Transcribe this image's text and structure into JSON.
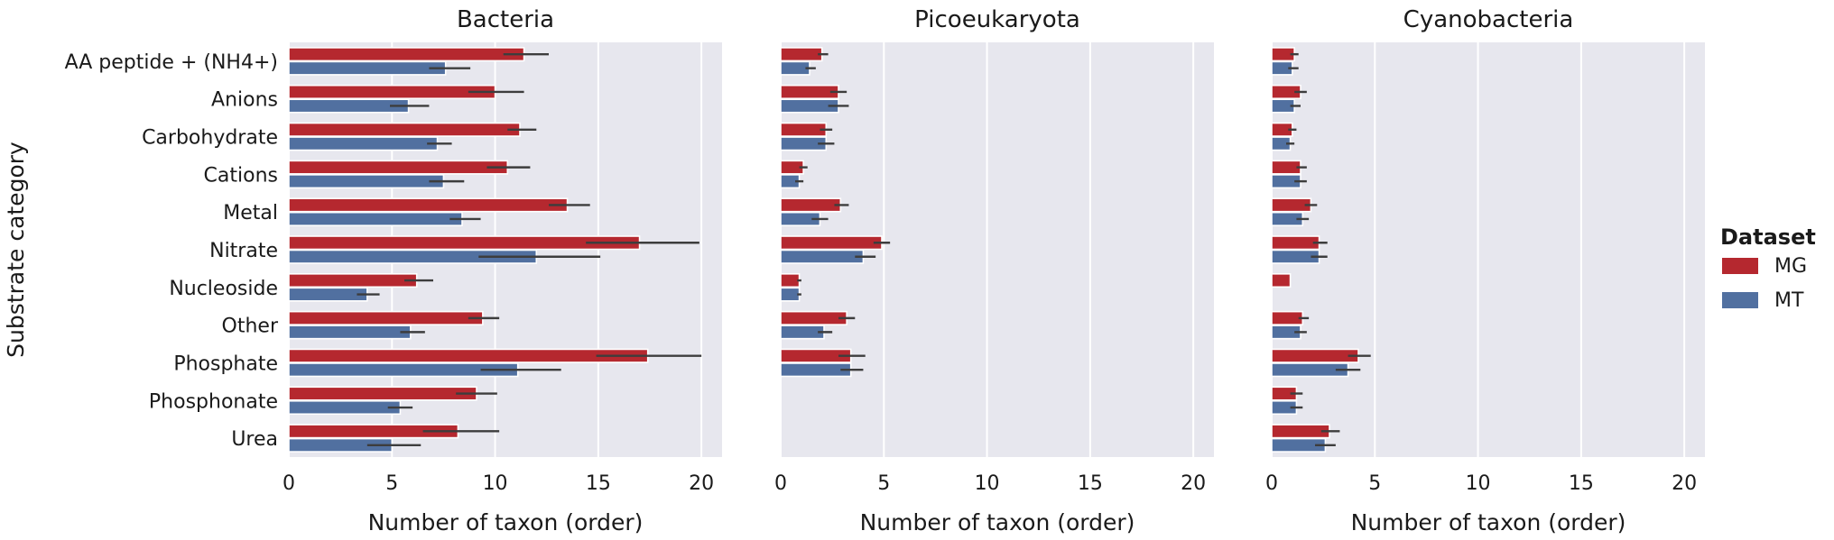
{
  "chart_data": {
    "type": "bar",
    "orientation": "horizontal",
    "categories": [
      "AA peptide + (NH4+)",
      "Anions",
      "Carbohydrate",
      "Cations",
      "Metal",
      "Nitrate",
      "Nucleoside",
      "Other",
      "Phosphate",
      "Phosphonate",
      "Urea"
    ],
    "ylabel": "Substrate category",
    "xlabel": "Number of taxon (order)",
    "xlim": [
      0,
      21
    ],
    "xticks": [
      0,
      5,
      10,
      15,
      20
    ],
    "grid": true,
    "legend": {
      "title": "Dataset",
      "placement": "right",
      "entries": [
        {
          "name": "MG",
          "color": "#b5282f"
        },
        {
          "name": "MT",
          "color": "#5170a0"
        }
      ]
    },
    "facets": [
      {
        "title": "Bacteria",
        "series": [
          {
            "name": "MG",
            "values": [
              11.4,
              10.0,
              11.2,
              10.6,
              13.5,
              17.0,
              6.2,
              9.4,
              17.4,
              9.1,
              8.2
            ],
            "ci": [
              [
                10.4,
                12.6
              ],
              [
                8.7,
                11.4
              ],
              [
                10.6,
                12.0
              ],
              [
                9.6,
                11.7
              ],
              [
                12.6,
                14.6
              ],
              [
                14.4,
                19.9
              ],
              [
                5.6,
                7.0
              ],
              [
                8.7,
                10.2
              ],
              [
                14.9,
                20.0
              ],
              [
                8.1,
                10.1
              ],
              [
                6.5,
                10.2
              ]
            ]
          },
          {
            "name": "MT",
            "values": [
              7.6,
              5.8,
              7.2,
              7.5,
              8.4,
              12.0,
              3.8,
              5.9,
              11.1,
              5.4,
              5.0
            ],
            "ci": [
              [
                6.8,
                8.8
              ],
              [
                4.9,
                6.8
              ],
              [
                6.7,
                7.9
              ],
              [
                6.8,
                8.5
              ],
              [
                7.8,
                9.3
              ],
              [
                9.2,
                15.1
              ],
              [
                3.3,
                4.4
              ],
              [
                5.4,
                6.6
              ],
              [
                9.3,
                13.2
              ],
              [
                4.8,
                6.0
              ],
              [
                3.8,
                6.4
              ]
            ]
          }
        ]
      },
      {
        "title": "Picoeukaryota",
        "series": [
          {
            "name": "MG",
            "values": [
              2.0,
              2.8,
              2.2,
              1.1,
              2.9,
              4.9,
              0.9,
              3.2,
              3.4,
              null,
              null
            ],
            "ci": [
              [
                1.8,
                2.3
              ],
              [
                2.4,
                3.2
              ],
              [
                1.9,
                2.5
              ],
              [
                0.9,
                1.3
              ],
              [
                2.6,
                3.3
              ],
              [
                4.5,
                5.3
              ],
              [
                0.8,
                1.0
              ],
              [
                2.8,
                3.6
              ],
              [
                2.8,
                4.1
              ],
              null,
              null
            ]
          },
          {
            "name": "MT",
            "values": [
              1.4,
              2.8,
              2.2,
              0.9,
              1.9,
              4.0,
              0.9,
              2.1,
              3.4,
              null,
              null
            ],
            "ci": [
              [
                1.2,
                1.7
              ],
              [
                2.3,
                3.3
              ],
              [
                1.8,
                2.6
              ],
              [
                0.7,
                1.1
              ],
              [
                1.5,
                2.3
              ],
              [
                3.6,
                4.6
              ],
              [
                0.8,
                1.0
              ],
              [
                1.8,
                2.5
              ],
              [
                2.9,
                4.0
              ],
              null,
              null
            ]
          }
        ]
      },
      {
        "title": "Cyanobacteria",
        "series": [
          {
            "name": "MG",
            "values": [
              1.1,
              1.4,
              1.0,
              1.4,
              1.9,
              2.3,
              0.9,
              1.5,
              4.2,
              1.2,
              2.8
            ],
            "ci": [
              [
                0.9,
                1.3
              ],
              [
                1.1,
                1.7
              ],
              [
                0.8,
                1.2
              ],
              [
                1.2,
                1.7
              ],
              [
                1.6,
                2.2
              ],
              [
                2.0,
                2.7
              ],
              [
                0.9,
                0.9
              ],
              [
                1.3,
                1.8
              ],
              [
                3.7,
                4.8
              ],
              [
                0.9,
                1.5
              ],
              [
                2.4,
                3.3
              ]
            ]
          },
          {
            "name": "MT",
            "values": [
              1.0,
              1.1,
              0.9,
              1.4,
              1.5,
              2.3,
              null,
              1.4,
              3.7,
              1.2,
              2.6
            ],
            "ci": [
              [
                0.8,
                1.3
              ],
              [
                0.9,
                1.4
              ],
              [
                0.7,
                1.1
              ],
              [
                1.1,
                1.7
              ],
              [
                1.2,
                1.8
              ],
              [
                1.9,
                2.7
              ],
              null,
              [
                1.1,
                1.7
              ],
              [
                3.1,
                4.3
              ],
              [
                0.9,
                1.5
              ],
              [
                2.1,
                3.1
              ]
            ]
          }
        ]
      }
    ]
  }
}
